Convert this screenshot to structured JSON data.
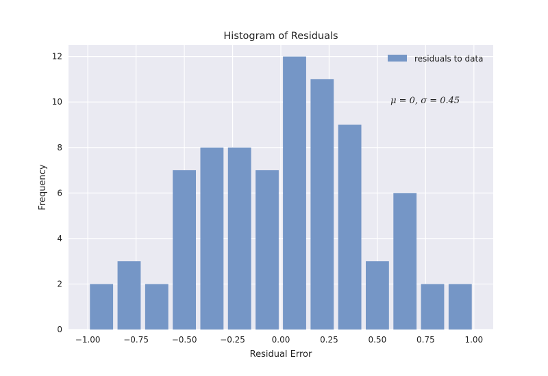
{
  "chart_data": {
    "type": "bar",
    "title": "Histogram of Residuals",
    "xlabel": "Residual Error",
    "ylabel": "Frequency",
    "bin_centers": [
      -0.929,
      -0.786,
      -0.643,
      -0.5,
      -0.357,
      -0.214,
      -0.071,
      0.071,
      0.214,
      0.357,
      0.5,
      0.643,
      0.786,
      0.929
    ],
    "bar_width": 0.12,
    "series": [
      {
        "name": "residuals to data",
        "values": [
          2,
          3,
          2,
          7,
          8,
          8,
          7,
          12,
          11,
          9,
          3,
          6,
          2,
          2
        ],
        "color": "#7596c6"
      }
    ],
    "xlim": [
      -1.1,
      1.1
    ],
    "ylim": [
      0,
      12.5
    ],
    "xticks": [
      -1.0,
      -0.75,
      -0.5,
      -0.25,
      0.0,
      0.25,
      0.5,
      0.75,
      1.0
    ],
    "xtick_labels": [
      "−1.00",
      "−0.75",
      "−0.50",
      "−0.25",
      "0.00",
      "0.25",
      "0.50",
      "0.75",
      "1.00"
    ],
    "yticks": [
      0,
      2,
      4,
      6,
      8,
      10,
      12
    ],
    "ytick_labels": [
      "0",
      "2",
      "4",
      "6",
      "8",
      "10",
      "12"
    ],
    "grid": true,
    "legend_position": "top-right",
    "annotation": {
      "text": "μ = 0, σ = 0.45",
      "x": 0.6,
      "y": 10.1
    },
    "colors": {
      "plot_background": "#eaeaf2",
      "grid": "#ffffff",
      "bar": "#7596c6"
    }
  }
}
